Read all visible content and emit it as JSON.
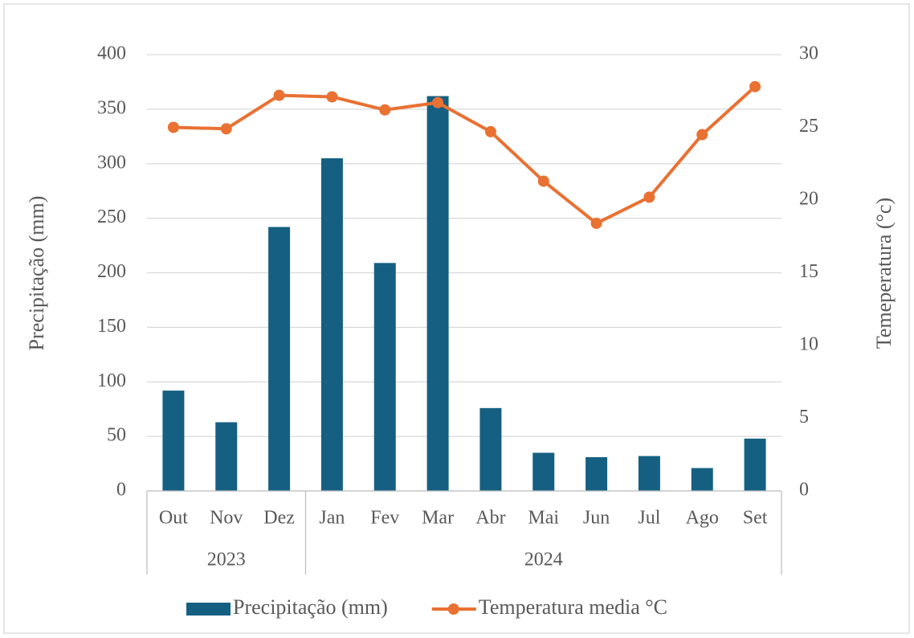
{
  "chart_data": {
    "type": "bar",
    "category_groups": [
      {
        "name": "2023",
        "categories": [
          "Out",
          "Nov",
          "Dez"
        ]
      },
      {
        "name": "2024",
        "categories": [
          "Jan",
          "Fev",
          "Mar",
          "Abr",
          "Mai",
          "Jun",
          "Jul",
          "Ago",
          "Set"
        ]
      }
    ],
    "series": [
      {
        "name": "Precipitação (mm)",
        "type": "bar",
        "color": "#156082",
        "values": [
          92,
          63,
          242,
          305,
          209,
          362,
          76,
          35,
          31,
          32,
          21,
          48
        ]
      },
      {
        "name": "Temperatura media °C",
        "type": "line",
        "axis": "y2",
        "color": "#e97132",
        "values": [
          25.0,
          24.9,
          27.2,
          27.1,
          26.2,
          26.7,
          24.7,
          21.3,
          18.4,
          20.2,
          24.5,
          27.8
        ]
      }
    ],
    "ylabel": "Precipitação (mm)",
    "y2label": "Temeperatura (°c)",
    "ylim": [
      0,
      400
    ],
    "yticks": [
      0,
      50,
      100,
      150,
      200,
      250,
      300,
      350,
      400
    ],
    "y2lim": [
      0,
      30
    ],
    "y2ticks": [
      0,
      5,
      10,
      15,
      20,
      25,
      30
    ],
    "grid": true,
    "legend": "bottom"
  }
}
